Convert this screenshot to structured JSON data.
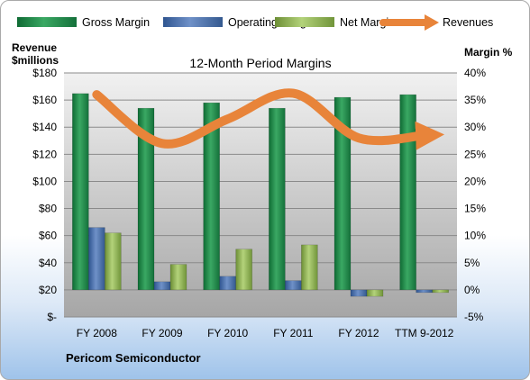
{
  "chart_data": {
    "type": "bar",
    "title": "12-Month Period Margins",
    "company": "Pericom Semiconductor",
    "left_axis": {
      "title_line1": "Revenue",
      "title_line2": "$millions",
      "min": 0,
      "max": 180,
      "step": 20,
      "tick_labels": [
        "$-",
        "$20",
        "$40",
        "$60",
        "$80",
        "$100",
        "$120",
        "$140",
        "$160",
        "$180"
      ]
    },
    "right_axis": {
      "title": "Margin %",
      "min": -5,
      "max": 40,
      "step": 5,
      "tick_labels": [
        "-5%",
        "0%",
        "5%",
        "10%",
        "15%",
        "20%",
        "25%",
        "30%",
        "35%",
        "40%"
      ]
    },
    "categories": [
      "FY 2008",
      "FY 2009",
      "FY 2010",
      "FY 2011",
      "FY 2012",
      "TTM 9-2012"
    ],
    "series": [
      {
        "name": "Gross Margin",
        "kind": "bar",
        "axis": "right",
        "color": "#1f8a4c",
        "values": [
          36.2,
          33.5,
          34.5,
          33.5,
          35.5,
          36.0
        ]
      },
      {
        "name": "Operating Margin",
        "kind": "bar",
        "axis": "right",
        "color": "#4a6fa8",
        "values": [
          11.5,
          1.5,
          2.5,
          1.7,
          -1.2,
          -0.5
        ]
      },
      {
        "name": "Net Margin",
        "kind": "bar",
        "axis": "right",
        "color": "#8fb352",
        "values": [
          10.5,
          4.7,
          7.5,
          8.3,
          -1.2,
          -0.5
        ]
      },
      {
        "name": "Revenues",
        "kind": "line",
        "axis": "left",
        "color": "#e8843a",
        "values": [
          164,
          128,
          146,
          165,
          132,
          134
        ]
      }
    ],
    "grid": true,
    "legend_position": "top"
  }
}
